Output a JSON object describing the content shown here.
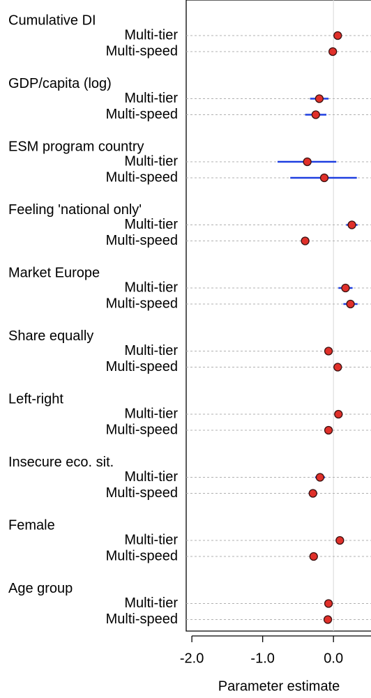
{
  "chart_data": {
    "type": "coefplot",
    "xlabel": "Parameter estimate",
    "xlim": [
      -2.08,
      0.53
    ],
    "xticks": [
      {
        "value": -2,
        "label": "-2.0"
      },
      {
        "value": -1,
        "label": "-1.0"
      },
      {
        "value": 0,
        "label": "0.0"
      }
    ],
    "point_color": "#e0302a",
    "ci_color": "#1f3fe0",
    "grid": true,
    "groups": [
      {
        "name": "Cumulative DI",
        "rows": [
          {
            "label": "Multi-tier",
            "estimate": 0.06,
            "lower": 0.03,
            "upper": 0.09
          },
          {
            "label": "Multi-speed",
            "estimate": -0.01,
            "lower": -0.04,
            "upper": 0.02
          }
        ]
      },
      {
        "name": "GDP/capita (log)",
        "rows": [
          {
            "label": "Multi-tier",
            "estimate": -0.2,
            "lower": -0.33,
            "upper": -0.07
          },
          {
            "label": "Multi-speed",
            "estimate": -0.25,
            "lower": -0.4,
            "upper": -0.1
          }
        ]
      },
      {
        "name": "ESM program country",
        "rows": [
          {
            "label": "Multi-tier",
            "estimate": -0.37,
            "lower": -0.79,
            "upper": 0.04
          },
          {
            "label": "Multi-speed",
            "estimate": -0.13,
            "lower": -0.61,
            "upper": 0.33
          }
        ]
      },
      {
        "name": "Feeling 'national only'",
        "rows": [
          {
            "label": "Multi-tier",
            "estimate": 0.26,
            "lower": 0.18,
            "upper": 0.34
          },
          {
            "label": "Multi-speed",
            "estimate": -0.4,
            "lower": -0.46,
            "upper": -0.34
          }
        ]
      },
      {
        "name": "Market Europe",
        "rows": [
          {
            "label": "Multi-tier",
            "estimate": 0.17,
            "lower": 0.07,
            "upper": 0.27
          },
          {
            "label": "Multi-speed",
            "estimate": 0.24,
            "lower": 0.14,
            "upper": 0.34
          }
        ]
      },
      {
        "name": "Share equally",
        "rows": [
          {
            "label": "Multi-tier",
            "estimate": -0.07,
            "lower": -0.1,
            "upper": -0.04
          },
          {
            "label": "Multi-speed",
            "estimate": 0.06,
            "lower": 0.03,
            "upper": 0.09
          }
        ]
      },
      {
        "name": "Left-right",
        "rows": [
          {
            "label": "Multi-tier",
            "estimate": 0.07,
            "lower": 0.04,
            "upper": 0.1
          },
          {
            "label": "Multi-speed",
            "estimate": -0.07,
            "lower": -0.1,
            "upper": -0.04
          }
        ]
      },
      {
        "name": "Insecure eco. sit.",
        "rows": [
          {
            "label": "Multi-tier",
            "estimate": -0.19,
            "lower": -0.26,
            "upper": -0.12
          },
          {
            "label": "Multi-speed",
            "estimate": -0.29,
            "lower": -0.35,
            "upper": -0.23
          }
        ]
      },
      {
        "name": "Female",
        "rows": [
          {
            "label": "Multi-tier",
            "estimate": 0.09,
            "lower": 0.03,
            "upper": 0.15
          },
          {
            "label": "Multi-speed",
            "estimate": -0.28,
            "lower": -0.32,
            "upper": -0.24
          }
        ]
      },
      {
        "name": "Age group",
        "rows": [
          {
            "label": "Multi-tier",
            "estimate": -0.07,
            "lower": -0.1,
            "upper": -0.04
          },
          {
            "label": "Multi-speed",
            "estimate": -0.08,
            "lower": -0.11,
            "upper": -0.05
          }
        ]
      }
    ]
  }
}
